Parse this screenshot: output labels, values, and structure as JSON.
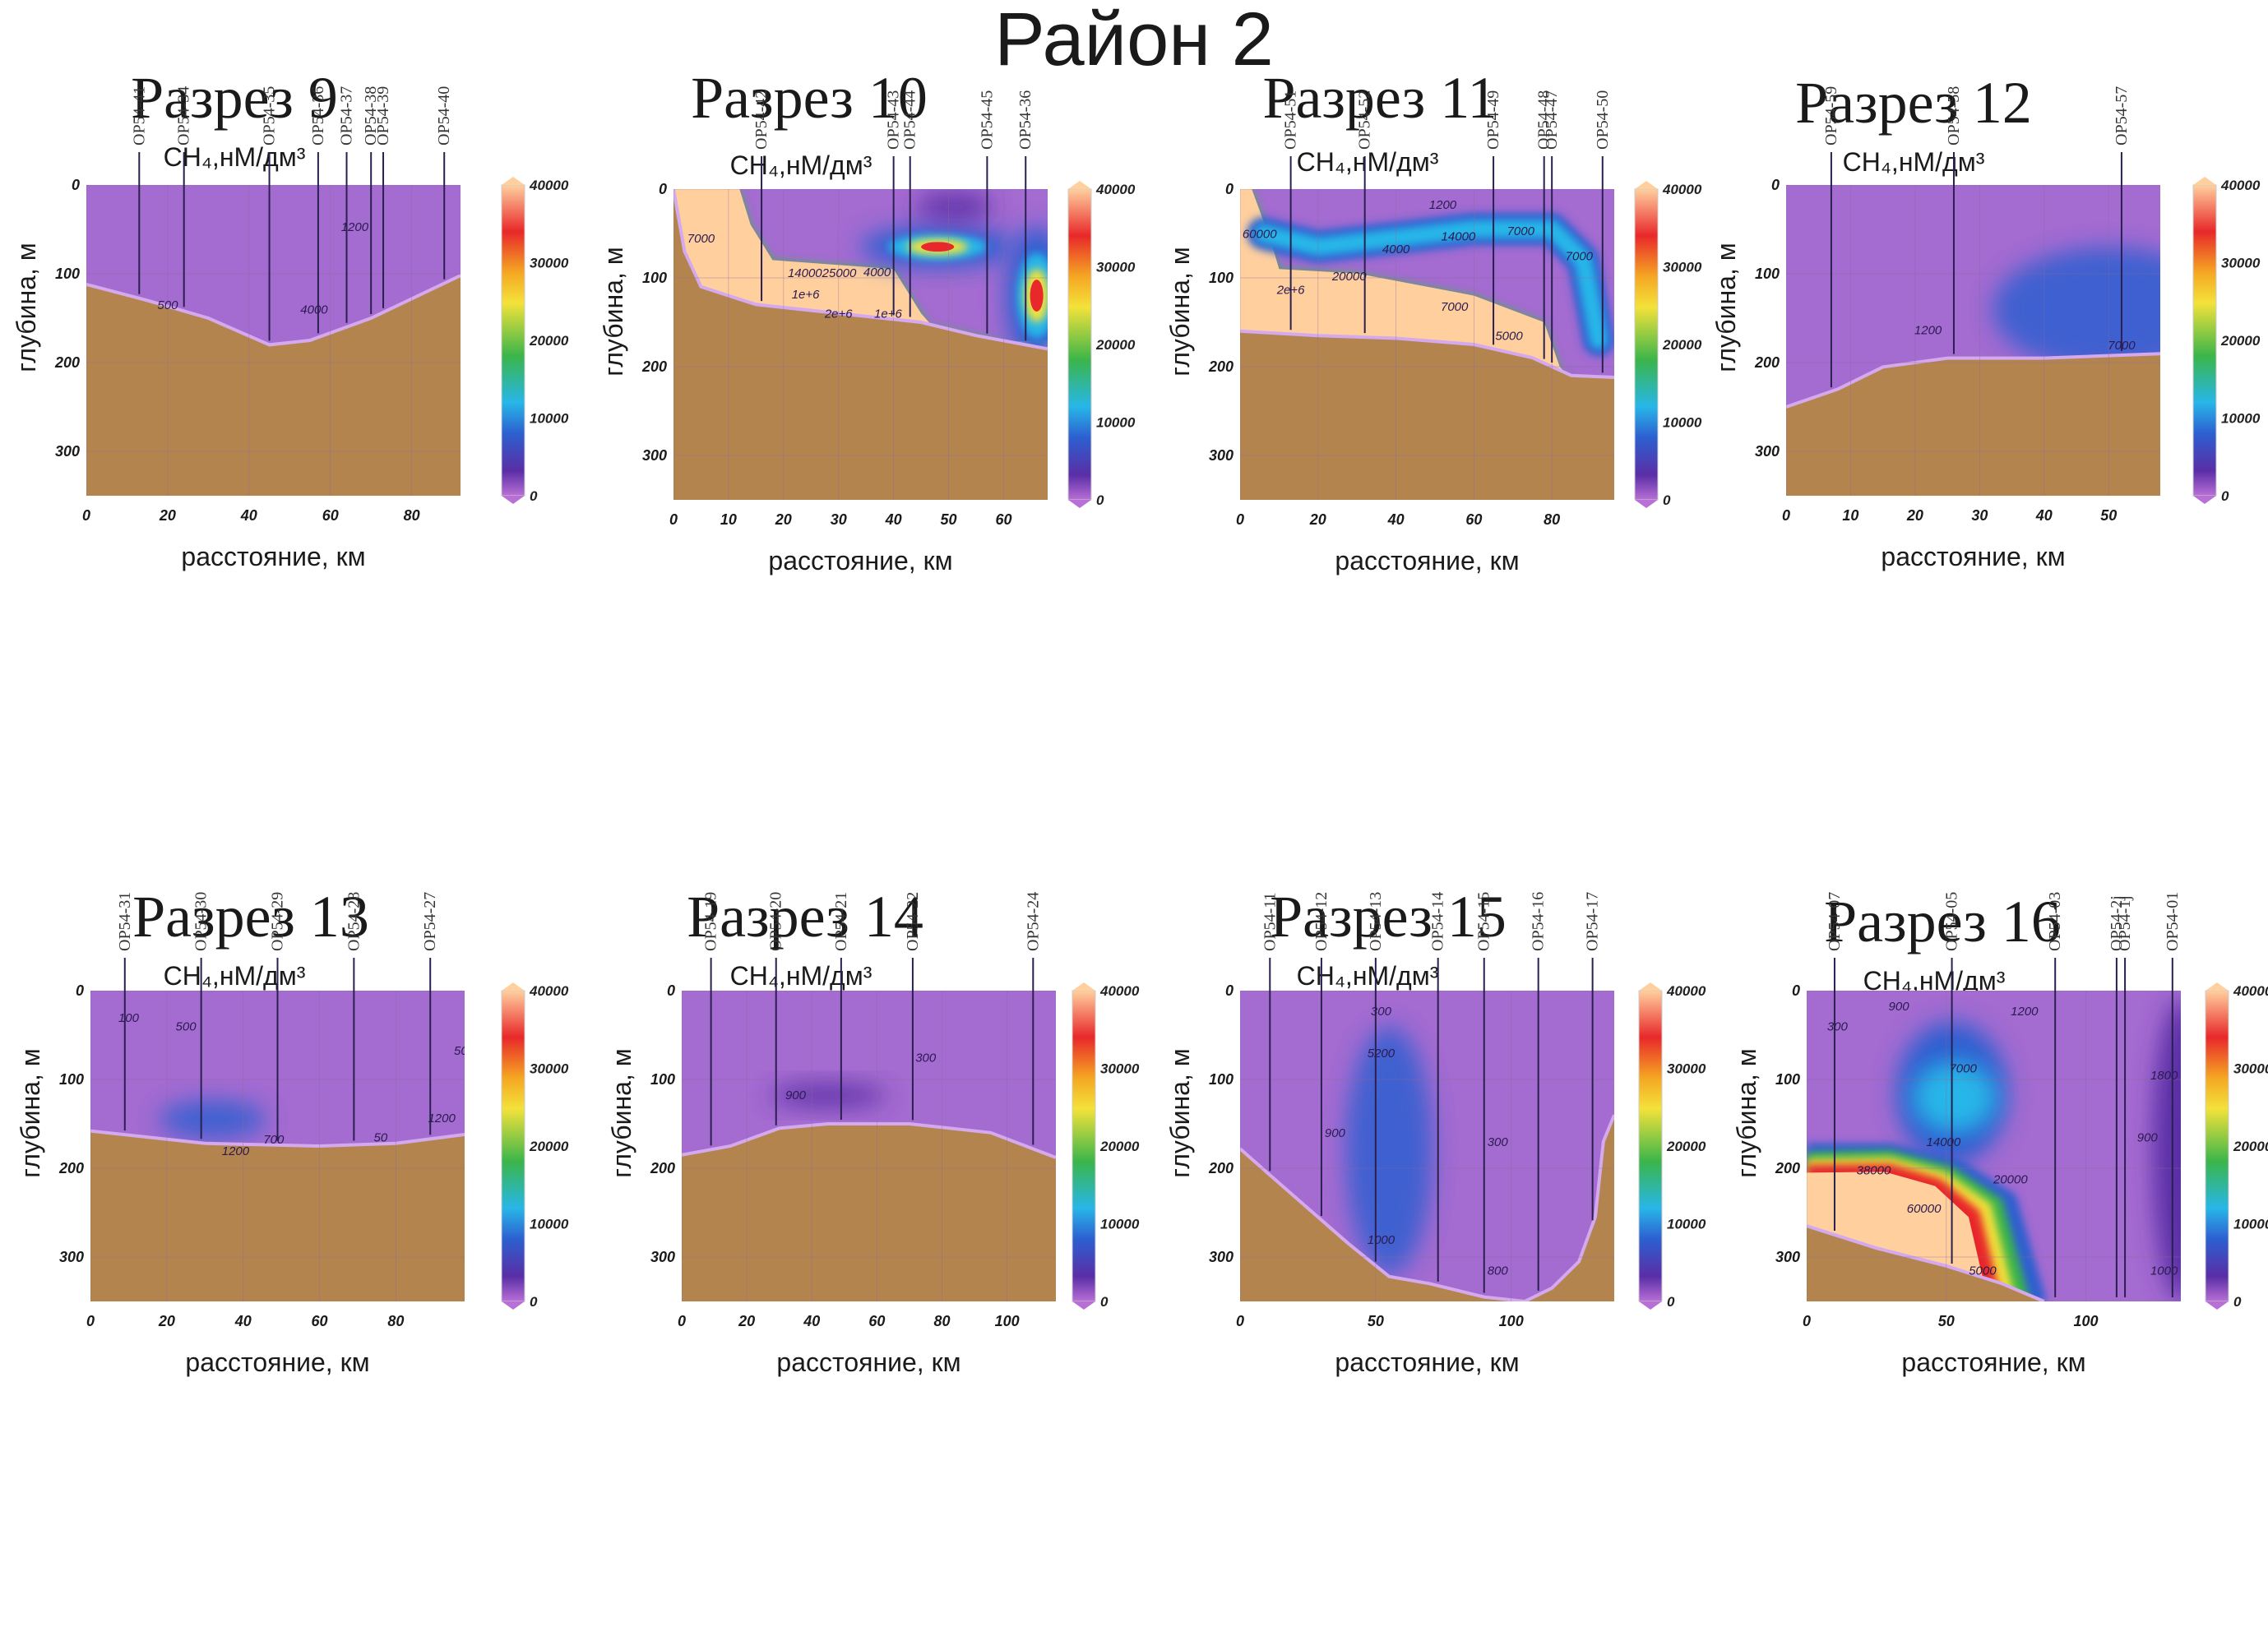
{
  "title": "Район 2",
  "colorbar": {
    "ticks": [
      "40000",
      "30000",
      "20000",
      "10000",
      "0"
    ],
    "colors": [
      "#ffcf9e",
      "#e8282a",
      "#f5a623",
      "#f3e23a",
      "#3bb54a",
      "#27b6e8",
      "#2d5fd0",
      "#5a2ea6",
      "#b86fd6"
    ]
  },
  "chart_data": [
    {
      "type": "heatmap",
      "title": "Разрез 9",
      "subtitle": "CH₄,нМ/дм³",
      "xlabel": "расстояние, км",
      "ylabel": "глубина, м",
      "xticks": [
        "0",
        "20",
        "40",
        "60",
        "80"
      ],
      "yticks": [
        "0",
        "100",
        "200",
        "300"
      ],
      "xlim": [
        0,
        92
      ],
      "ylim": [
        0,
        350
      ],
      "clim": [
        0,
        40000
      ],
      "stations": [
        {
          "name": "OP54-41",
          "x": 13
        },
        {
          "name": "OP54-34",
          "x": 24
        },
        {
          "name": "OP54-35",
          "x": 45
        },
        {
          "name": "OP54-36",
          "x": 57
        },
        {
          "name": "OP54-37",
          "x": 64
        },
        {
          "name": "OP54-38",
          "x": 70
        },
        {
          "name": "OP54-39",
          "x": 73
        },
        {
          "name": "OP54-40",
          "x": 88
        }
      ],
      "seafloor": [
        [
          0,
          112
        ],
        [
          15,
          130
        ],
        [
          30,
          150
        ],
        [
          45,
          180
        ],
        [
          55,
          175
        ],
        [
          70,
          150
        ],
        [
          92,
          102
        ]
      ],
      "contour_labels": [
        {
          "text": "500",
          "x": 20,
          "y": 140
        },
        {
          "text": "4000",
          "x": 56,
          "y": 145
        },
        {
          "text": "1200",
          "x": 66,
          "y": 52
        }
      ],
      "features": []
    },
    {
      "type": "heatmap",
      "title": "Разрез 10",
      "subtitle": "CH₄,нМ/дм³",
      "xlabel": "расстояние, км",
      "ylabel": "глубина, м",
      "xticks": [
        "0",
        "10",
        "20",
        "30",
        "40",
        "50",
        "60"
      ],
      "yticks": [
        "0",
        "100",
        "200",
        "300"
      ],
      "xlim": [
        0,
        68
      ],
      "ylim": [
        0,
        350
      ],
      "clim": [
        0,
        40000
      ],
      "stations": [
        {
          "name": "OP54-42",
          "x": 16
        },
        {
          "name": "OP54-43",
          "x": 40
        },
        {
          "name": "OP54-44",
          "x": 43
        },
        {
          "name": "OP54-45",
          "x": 57
        },
        {
          "name": "OP54-36",
          "x": 64
        }
      ],
      "seafloor": [
        [
          0,
          0
        ],
        [
          2,
          70
        ],
        [
          5,
          110
        ],
        [
          15,
          130
        ],
        [
          30,
          140
        ],
        [
          45,
          150
        ],
        [
          55,
          165
        ],
        [
          68,
          180
        ]
      ],
      "high_zone": [
        [
          0,
          0
        ],
        [
          12,
          0
        ],
        [
          14,
          40
        ],
        [
          18,
          80
        ],
        [
          40,
          90
        ],
        [
          45,
          140
        ],
        [
          50,
          175
        ],
        [
          68,
          170
        ],
        [
          68,
          180
        ],
        [
          55,
          165
        ],
        [
          45,
          150
        ],
        [
          30,
          140
        ],
        [
          15,
          130
        ],
        [
          5,
          110
        ],
        [
          2,
          70
        ]
      ],
      "contour_labels": [
        {
          "text": "7000",
          "x": 5,
          "y": 60
        },
        {
          "text": "1400025000",
          "x": 27,
          "y": 99
        },
        {
          "text": "4000",
          "x": 37,
          "y": 98
        },
        {
          "text": "1e+6",
          "x": 24,
          "y": 123
        },
        {
          "text": "2e+6",
          "x": 30,
          "y": 145
        },
        {
          "text": "1e+6",
          "x": 39,
          "y": 145
        }
      ],
      "features": [
        {
          "kind": "plume",
          "cx": 48,
          "cy": 65,
          "rx": 10,
          "ry": 18,
          "peak": 40000
        },
        {
          "kind": "blob",
          "cx": 51,
          "cy": 20,
          "rx": 7,
          "ry": 17,
          "peak": 3000
        },
        {
          "kind": "rightwall",
          "cx": 66,
          "cy": 120,
          "rx": 4,
          "ry": 60,
          "peak": 40000
        }
      ]
    },
    {
      "type": "heatmap",
      "title": "Разрез 11",
      "subtitle": "CH₄,нМ/дм³",
      "xlabel": "расстояние, км",
      "ylabel": "глубина, м",
      "xticks": [
        "0",
        "20",
        "40",
        "60",
        "80"
      ],
      "yticks": [
        "0",
        "100",
        "200",
        "300"
      ],
      "xlim": [
        0,
        96
      ],
      "ylim": [
        0,
        350
      ],
      "clim": [
        0,
        40000
      ],
      "stations": [
        {
          "name": "OP54-51",
          "x": 13
        },
        {
          "name": "OP54-52",
          "x": 32
        },
        {
          "name": "OP54-49",
          "x": 65
        },
        {
          "name": "OP54-48",
          "x": 78
        },
        {
          "name": "OP54-47",
          "x": 80
        },
        {
          "name": "OP54-50",
          "x": 93
        }
      ],
      "seafloor": [
        [
          0,
          160
        ],
        [
          20,
          165
        ],
        [
          40,
          168
        ],
        [
          60,
          175
        ],
        [
          75,
          190
        ],
        [
          85,
          210
        ],
        [
          96,
          212
        ]
      ],
      "high_zone": [
        [
          0,
          0
        ],
        [
          3,
          0
        ],
        [
          8,
          60
        ],
        [
          10,
          90
        ],
        [
          30,
          95
        ],
        [
          60,
          120
        ],
        [
          78,
          150
        ],
        [
          82,
          200
        ],
        [
          84,
          210
        ],
        [
          85,
          210
        ],
        [
          75,
          190
        ],
        [
          60,
          175
        ],
        [
          40,
          168
        ],
        [
          20,
          165
        ],
        [
          0,
          160
        ]
      ],
      "contour_labels": [
        {
          "text": "60000",
          "x": 5,
          "y": 55
        },
        {
          "text": "1200",
          "x": 52,
          "y": 22
        },
        {
          "text": "14000",
          "x": 56,
          "y": 58
        },
        {
          "text": "7000",
          "x": 72,
          "y": 52
        },
        {
          "text": "4000",
          "x": 40,
          "y": 72
        },
        {
          "text": "7000",
          "x": 87,
          "y": 80
        },
        {
          "text": "20000",
          "x": 28,
          "y": 103
        },
        {
          "text": "2e+6",
          "x": 13,
          "y": 118
        },
        {
          "text": "7000",
          "x": 55,
          "y": 137
        },
        {
          "text": "5000",
          "x": 69,
          "y": 170
        }
      ],
      "features": [
        {
          "kind": "band",
          "path": [
            [
              6,
              50
            ],
            [
              20,
              65
            ],
            [
              40,
              55
            ],
            [
              60,
              45
            ],
            [
              80,
              45
            ],
            [
              88,
              80
            ],
            [
              92,
              170
            ]
          ],
          "width": 22,
          "peak": 18000
        }
      ]
    },
    {
      "type": "heatmap",
      "title": "Разрез 12",
      "subtitle": "CH₄,нМ/дм³",
      "xlabel": "расстояние, км",
      "ylabel": "глубина, м",
      "xticks": [
        "0",
        "10",
        "20",
        "30",
        "40",
        "50"
      ],
      "yticks": [
        "0",
        "100",
        "200",
        "300"
      ],
      "xlim": [
        0,
        58
      ],
      "ylim": [
        0,
        350
      ],
      "clim": [
        0,
        40000
      ],
      "stations": [
        {
          "name": "OP54-59",
          "x": 7
        },
        {
          "name": "OP54-58",
          "x": 26
        },
        {
          "name": "OP54-57",
          "x": 52
        }
      ],
      "seafloor": [
        [
          0,
          250
        ],
        [
          8,
          230
        ],
        [
          15,
          205
        ],
        [
          25,
          195
        ],
        [
          40,
          195
        ],
        [
          58,
          190
        ]
      ],
      "contour_labels": [
        {
          "text": "1200",
          "x": 22,
          "y": 168
        },
        {
          "text": "7000",
          "x": 52,
          "y": 185
        }
      ],
      "features": [
        {
          "kind": "blob",
          "cx": 50,
          "cy": 140,
          "rx": 18,
          "ry": 70,
          "peak": 7000
        }
      ]
    },
    {
      "type": "heatmap",
      "title": "Разрез 13",
      "subtitle": "CH₄,нМ/дм³",
      "xlabel": "расстояние, км",
      "ylabel": "глубина, м",
      "xticks": [
        "0",
        "20",
        "40",
        "60",
        "80"
      ],
      "yticks": [
        "0",
        "100",
        "200",
        "300"
      ],
      "xlim": [
        0,
        98
      ],
      "ylim": [
        0,
        350
      ],
      "clim": [
        0,
        40000
      ],
      "stations": [
        {
          "name": "OP54-31",
          "x": 9
        },
        {
          "name": "OP54-30",
          "x": 29
        },
        {
          "name": "OP54-29",
          "x": 49
        },
        {
          "name": "OP54-28",
          "x": 69
        },
        {
          "name": "OP54-27",
          "x": 89
        }
      ],
      "seafloor": [
        [
          0,
          158
        ],
        [
          30,
          172
        ],
        [
          60,
          175
        ],
        [
          80,
          172
        ],
        [
          98,
          162
        ]
      ],
      "contour_labels": [
        {
          "text": "100",
          "x": 10,
          "y": 35
        },
        {
          "text": "500",
          "x": 25,
          "y": 45
        },
        {
          "text": "1200",
          "x": 38,
          "y": 185
        },
        {
          "text": "1200",
          "x": 92,
          "y": 148
        },
        {
          "text": "50",
          "x": 97,
          "y": 72
        },
        {
          "text": "50",
          "x": 76,
          "y": 170
        },
        {
          "text": "700",
          "x": 48,
          "y": 172
        }
      ],
      "features": [
        {
          "kind": "blob",
          "cx": 32,
          "cy": 145,
          "rx": 14,
          "ry": 22,
          "peak": 6000
        }
      ]
    },
    {
      "type": "heatmap",
      "title": "Разрез 14",
      "subtitle": "CH₄,нМ/дм³",
      "xlabel": "расстояние, км",
      "ylabel": "глубина, м",
      "xticks": [
        "0",
        "20",
        "40",
        "60",
        "80",
        "100"
      ],
      "yticks": [
        "0",
        "100",
        "200",
        "300"
      ],
      "xlim": [
        0,
        115
      ],
      "ylim": [
        0,
        350
      ],
      "clim": [
        0,
        40000
      ],
      "stations": [
        {
          "name": "OP54-19",
          "x": 9
        },
        {
          "name": "OP54-20",
          "x": 29
        },
        {
          "name": "OP54-21",
          "x": 49
        },
        {
          "name": "OP54-22",
          "x": 71
        },
        {
          "name": "OP54-24",
          "x": 108
        }
      ],
      "seafloor": [
        [
          0,
          185
        ],
        [
          15,
          175
        ],
        [
          30,
          155
        ],
        [
          45,
          150
        ],
        [
          70,
          150
        ],
        [
          95,
          160
        ],
        [
          115,
          188
        ]
      ],
      "contour_labels": [
        {
          "text": "900",
          "x": 35,
          "y": 122
        },
        {
          "text": "300",
          "x": 75,
          "y": 80
        }
      ],
      "features": [
        {
          "kind": "blob",
          "cx": 45,
          "cy": 118,
          "rx": 18,
          "ry": 14,
          "peak": 3000
        }
      ]
    },
    {
      "type": "heatmap",
      "title": "Разрез 15",
      "subtitle": "CH₄,нМ/дм³",
      "xlabel": "расстояние, км",
      "ylabel": "глубина, м",
      "xticks": [
        "0",
        "50",
        "100"
      ],
      "yticks": [
        "0",
        "100",
        "200",
        "300"
      ],
      "xlim": [
        0,
        138
      ],
      "ylim": [
        0,
        350
      ],
      "clim": [
        0,
        40000
      ],
      "stations": [
        {
          "name": "OP54-11",
          "x": 11
        },
        {
          "name": "OP54-12",
          "x": 30
        },
        {
          "name": "OP54-13",
          "x": 50
        },
        {
          "name": "OP54-14",
          "x": 73
        },
        {
          "name": "OP54-15",
          "x": 90
        },
        {
          "name": "OP54-16",
          "x": 110
        },
        {
          "name": "OP54-17",
          "x": 130
        }
      ],
      "seafloor": [
        [
          0,
          178
        ],
        [
          10,
          205
        ],
        [
          25,
          245
        ],
        [
          40,
          285
        ],
        [
          55,
          322
        ],
        [
          70,
          330
        ],
        [
          90,
          345
        ],
        [
          105,
          350
        ],
        [
          115,
          335
        ],
        [
          125,
          305
        ],
        [
          131,
          255
        ],
        [
          134,
          170
        ],
        [
          138,
          140
        ]
      ],
      "contour_labels": [
        {
          "text": "300",
          "x": 52,
          "y": 28
        },
        {
          "text": "5200",
          "x": 52,
          "y": 75
        },
        {
          "text": "900",
          "x": 35,
          "y": 165
        },
        {
          "text": "300",
          "x": 95,
          "y": 175
        },
        {
          "text": "1000",
          "x": 52,
          "y": 285
        },
        {
          "text": "800",
          "x": 95,
          "y": 320
        }
      ],
      "features": [
        {
          "kind": "blob",
          "cx": 55,
          "cy": 180,
          "rx": 16,
          "ry": 140,
          "peak": 6000
        }
      ]
    },
    {
      "type": "heatmap",
      "title": "Разрез 16",
      "subtitle": "CH₄,нМ/дм³",
      "xlabel": "расстояние, км",
      "ylabel": "глубина, м",
      "xticks": [
        "0",
        "50",
        "100"
      ],
      "yticks": [
        "0",
        "100",
        "200",
        "300"
      ],
      "xlim": [
        0,
        134
      ],
      "ylim": [
        0,
        350
      ],
      "clim": [
        0,
        40000
      ],
      "stations": [
        {
          "name": "OP54-07",
          "x": 10
        },
        {
          "name": "OP54-05",
          "x": 52
        },
        {
          "name": "OP54-03",
          "x": 89
        },
        {
          "name": "OP54-2j",
          "x": 111
        },
        {
          "name": "OP54-1j",
          "x": 114
        },
        {
          "name": "OP54-01",
          "x": 131
        }
      ],
      "seafloor": [
        [
          0,
          265
        ],
        [
          25,
          290
        ],
        [
          50,
          310
        ],
        [
          70,
          330
        ],
        [
          85,
          350
        ]
      ],
      "contour_labels": [
        {
          "text": "300",
          "x": 11,
          "y": 45
        },
        {
          "text": "900",
          "x": 33,
          "y": 22
        },
        {
          "text": "1200",
          "x": 78,
          "y": 28
        },
        {
          "text": "7000",
          "x": 56,
          "y": 92
        },
        {
          "text": "14000",
          "x": 49,
          "y": 175
        },
        {
          "text": "20000",
          "x": 73,
          "y": 217
        },
        {
          "text": "38000",
          "x": 24,
          "y": 207
        },
        {
          "text": "60000",
          "x": 42,
          "y": 250
        },
        {
          "text": "5000",
          "x": 63,
          "y": 320
        },
        {
          "text": "900",
          "x": 122,
          "y": 170
        },
        {
          "text": "1800",
          "x": 128,
          "y": 100
        },
        {
          "text": "1000",
          "x": 128,
          "y": 320
        }
      ],
      "features": []
    }
  ]
}
